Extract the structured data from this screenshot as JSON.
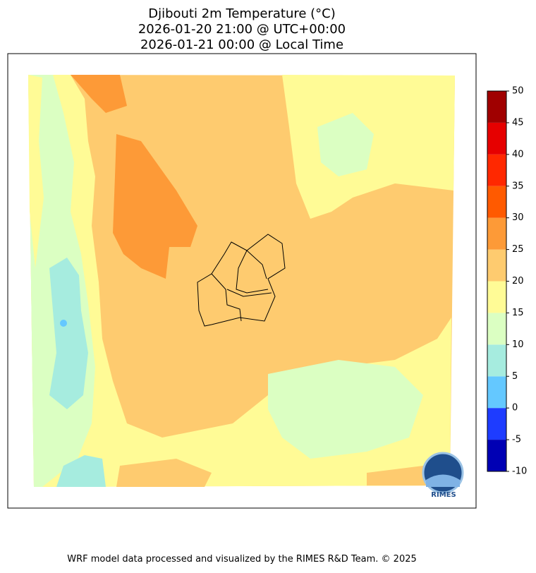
{
  "title": [
    "Djibouti 2m Temperature (°C)",
    "2026-01-20 21:00 @ UTC+00:00",
    "2026-01-21 00:00 @ Local Time"
  ],
  "colorbar": {
    "ticks": [
      -10,
      -5,
      0,
      5,
      10,
      15,
      20,
      25,
      30,
      35,
      40,
      45,
      50
    ],
    "colors": [
      "#0000b4",
      "#1e3cff",
      "#64c8ff",
      "#a6ecdf",
      "#dbffc2",
      "#fffb96",
      "#fecb6f",
      "#fd9a37",
      "#ff5a00",
      "#ff2800",
      "#e60000",
      "#a00000"
    ]
  },
  "logo": "RIMES",
  "footer": "WRF model data processed and visualized by the RIMES R&D Team. © 2025"
}
